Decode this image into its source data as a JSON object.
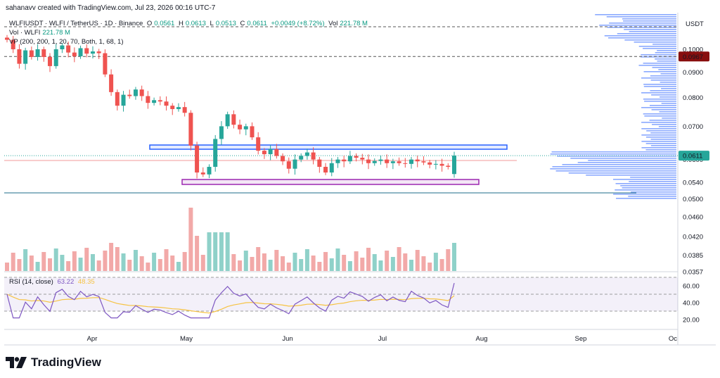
{
  "header": {
    "created_by": "sahanavv created with TradingView.com, Jul 23, 2026 00:16 UTC-7"
  },
  "legend": {
    "symbol": "WLFIUSDT · WLFI / TetherUS · 1D · Binance",
    "o_label": "O",
    "o_value": "0.0561",
    "h_label": "H",
    "h_value": "0.0613",
    "l_label": "L",
    "l_value": "0.0513",
    "c_label": "C",
    "c_value": "0.0611",
    "change": "+0.0049 (+8.72%)",
    "vol_label": "Vol",
    "vol_value": "221.78 M",
    "vol_line_label": "Vol · WLFI",
    "vol_line_value": "221.78 M",
    "vp_label": "VP (200, 200, 1, 20, 70, Both, 1, 68, 1)",
    "rsi_label": "RSI (14, close)",
    "rsi_value": "63.22",
    "rsi_ma_value": "48.35"
  },
  "price_axis": {
    "currency": "USDT",
    "ticks": [
      "0.1000",
      "0.0900",
      "0.0800",
      "0.0700",
      "0.0600",
      "0.0540",
      "0.0500",
      "0.0460",
      "0.0420",
      "0.0385",
      "0.0357"
    ],
    "current_price": "0.0611",
    "marker_price": "0.0967"
  },
  "rsi_axis": {
    "ticks": [
      "60.00",
      "40.00",
      "20.00"
    ]
  },
  "time_axis": {
    "ticks": [
      "Apr",
      "May",
      "Jun",
      "Jul",
      "Aug",
      "Sep",
      "Oc"
    ]
  },
  "colors": {
    "up": "#26a69a",
    "down": "#ef5350",
    "up_vol": "#8fd1c9",
    "down_vol": "#f2a9a8",
    "box_blue": "#2962ff",
    "box_purple": "#9c27b0",
    "rsi": "#7e57c2",
    "rsi_ma": "#f6c343",
    "vp": "#2962ff",
    "marker_bg": "#880e0e"
  },
  "chart_data": {
    "type": "candlestick",
    "series": [
      {
        "name": "WLFIUSDT",
        "values": [
          0.1045,
          0.1,
          0.0935,
          0.0995,
          0.0965,
          0.1,
          0.0965,
          0.0925,
          0.1,
          0.1018,
          0.0985,
          0.0968,
          0.1005,
          0.098,
          0.099,
          0.0982,
          0.089,
          0.082,
          0.077,
          0.081,
          0.0805,
          0.083,
          0.0805,
          0.078,
          0.079,
          0.0785,
          0.077,
          0.0758,
          0.0765,
          0.0745,
          0.064,
          0.0565,
          0.056,
          0.058,
          0.066,
          0.07,
          0.074,
          0.0705,
          0.069,
          0.07,
          0.0665,
          0.0625,
          0.0615,
          0.063,
          0.061,
          0.0595,
          0.0575,
          0.06,
          0.061,
          0.062,
          0.06,
          0.058,
          0.0565,
          0.059,
          0.06,
          0.0595,
          0.061,
          0.0605,
          0.06,
          0.059,
          0.0596,
          0.06,
          0.059,
          0.0595,
          0.059,
          0.0588,
          0.06,
          0.0595,
          0.0592,
          0.0586,
          0.0588,
          0.0583,
          0.058,
          0.0611
        ]
      }
    ],
    "volume_profile": true,
    "rsi": {
      "last": 63.22,
      "ma_last": 48.35,
      "range": [
        20,
        70
      ]
    },
    "ylim": [
      0.0357,
      0.105
    ],
    "log_scale": true,
    "grid": false
  }
}
